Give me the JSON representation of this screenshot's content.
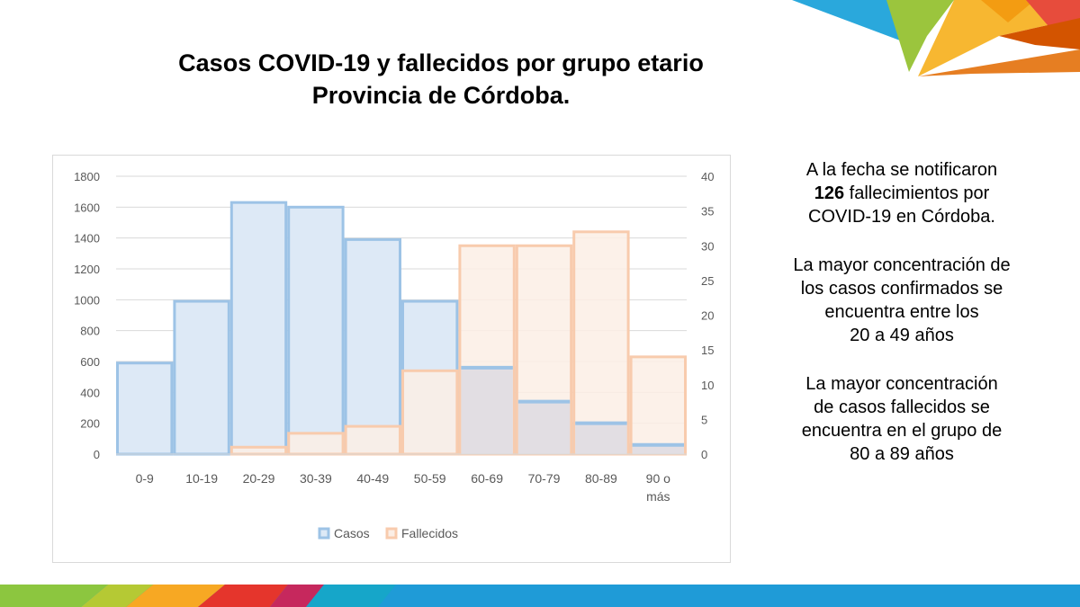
{
  "title": {
    "line1": "Casos COVID-19 y fallecidos por grupo etario",
    "line2": "Provincia de Córdoba."
  },
  "side_text": {
    "p1_before": "A la fecha se notificaron",
    "p1_number": "126",
    "p1_after": "fallecimientos por",
    "p1_line3": "COVID-19 en Córdoba.",
    "p2_line1": "La mayor concentración de",
    "p2_line2": "los casos confirmados se",
    "p2_line3": "encuentra entre los",
    "p2_line4": "20 a 49 años",
    "p3_line1": "La  mayor concentración",
    "p3_line2": "de casos fallecidos se",
    "p3_line3": "encuentra en el grupo de",
    "p3_line4": "80 a 89 años"
  },
  "colors": {
    "casos_fill": "#dde9f6",
    "casos_border": "#9dc3e6",
    "fallecidos_fill": "#fbeee5",
    "fallecidos_border": "#f8cbad",
    "overlap_fill": "#e2dee3",
    "grid": "#d9d9d9",
    "axis_text": "#595959"
  },
  "chart_data": {
    "type": "bar",
    "categories": [
      "0-9",
      "10-19",
      "20-29",
      "30-39",
      "40-49",
      "50-59",
      "60-69",
      "70-79",
      "80-89",
      "90 o más"
    ],
    "series": [
      {
        "name": "Casos",
        "axis": "left",
        "values": [
          590,
          990,
          1630,
          1600,
          1390,
          990,
          560,
          340,
          200,
          60
        ]
      },
      {
        "name": "Fallecidos",
        "axis": "right",
        "values": [
          0,
          0,
          1,
          3,
          4,
          12,
          30,
          30,
          32,
          14
        ]
      }
    ],
    "y_left": {
      "min": 0,
      "max": 1800,
      "ticks": [
        0,
        200,
        400,
        600,
        800,
        1000,
        1200,
        1400,
        1600,
        1800
      ]
    },
    "y_right": {
      "min": 0,
      "max": 40,
      "ticks": [
        0,
        5,
        10,
        15,
        20,
        25,
        30,
        35,
        40
      ]
    },
    "grid": true,
    "legend_position": "bottom"
  }
}
